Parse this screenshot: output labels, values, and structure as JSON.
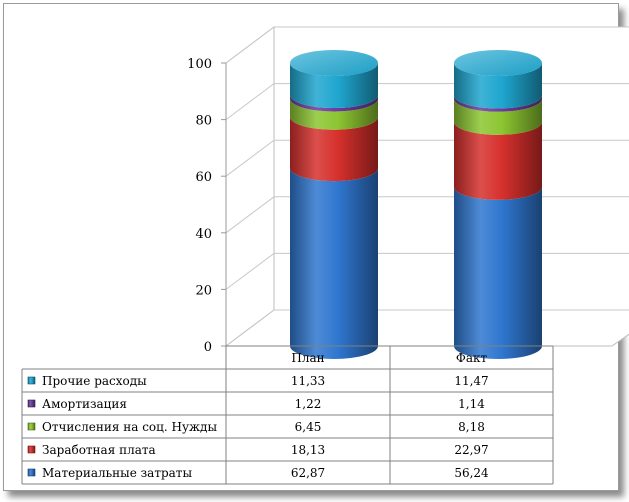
{
  "chart_data": {
    "type": "bar",
    "stacked": true,
    "style": "3d-cylinder",
    "title": "",
    "xlabel": "",
    "ylabel": "",
    "ylim": [
      0,
      100
    ],
    "yticks": [
      0,
      20,
      40,
      60,
      80,
      100
    ],
    "categories": [
      "План",
      "Факт"
    ],
    "grid": true,
    "legend": "data-table-left",
    "series": [
      {
        "name": "Материальные затраты",
        "color": "#2f76cf",
        "values": [
          62.87,
          56.24
        ],
        "labels": [
          "62,87",
          "56,24"
        ]
      },
      {
        "name": "Заработная плата",
        "color": "#d6302c",
        "values": [
          18.13,
          22.97
        ],
        "labels": [
          "18,13",
          "22,97"
        ]
      },
      {
        "name": "Отчисления на соц. Нужды",
        "color": "#8cc531",
        "values": [
          6.45,
          8.18
        ],
        "labels": [
          "6,45",
          "8,18"
        ]
      },
      {
        "name": "Амортизация",
        "color": "#6a3c9c",
        "values": [
          1.22,
          1.14
        ],
        "labels": [
          "1,22",
          "1,14"
        ]
      },
      {
        "name": "Прочие расходы",
        "color": "#1ea6cf",
        "values": [
          11.33,
          11.47
        ],
        "labels": [
          "11,33",
          "11,47"
        ]
      }
    ]
  }
}
